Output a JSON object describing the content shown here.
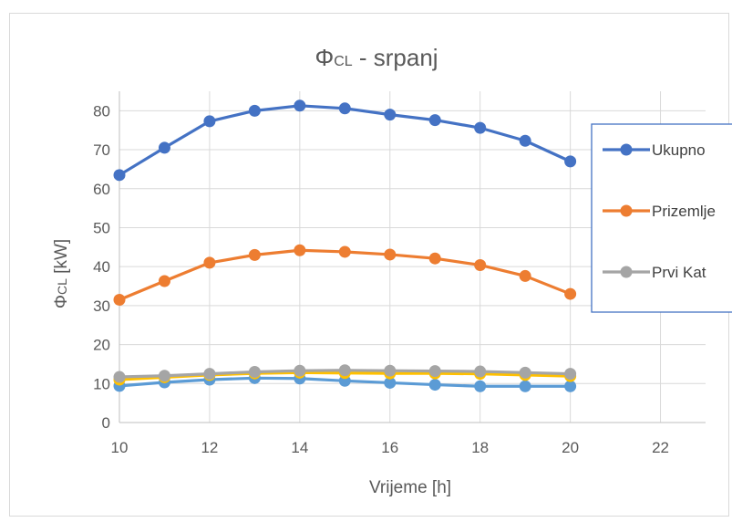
{
  "chart_data": {
    "type": "line",
    "title_symbol": "Φ",
    "title_sub": "CL",
    "title_rest": " - srpanj",
    "ylabel_symbol": "Φ",
    "ylabel_sub": "CL",
    "ylabel_rest": " [kW]",
    "xlabel": "Vrijeme [h]",
    "xlim": [
      10,
      23
    ],
    "ylim": [
      0,
      85
    ],
    "xticks": [
      10,
      12,
      14,
      16,
      18,
      20,
      22
    ],
    "yticks": [
      0,
      10,
      20,
      30,
      40,
      50,
      60,
      70,
      80
    ],
    "grid": true,
    "legend_position": "right",
    "x": [
      10,
      11,
      12,
      13,
      14,
      15,
      16,
      17,
      18,
      19,
      20
    ],
    "series": [
      {
        "name": "Ukupno",
        "color": "#4472C4",
        "in_legend": true,
        "values": [
          63.5,
          70.5,
          77.3,
          80.0,
          81.3,
          80.6,
          79.0,
          77.6,
          75.6,
          72.3,
          67.0
        ]
      },
      {
        "name": "Prizemlje",
        "color": "#ED7D31",
        "in_legend": true,
        "values": [
          31.5,
          36.3,
          41.0,
          43.0,
          44.2,
          43.8,
          43.1,
          42.1,
          40.4,
          37.6,
          33.0
        ]
      },
      {
        "name": "Prvi Kat",
        "color": "#A5A5A5",
        "in_legend": true,
        "values": [
          11.7,
          12.0,
          12.5,
          13.0,
          13.3,
          13.4,
          13.3,
          13.2,
          13.1,
          12.8,
          12.5
        ]
      },
      {
        "color": "#FFC000",
        "in_legend": false,
        "values": [
          11.0,
          11.6,
          12.2,
          12.6,
          12.8,
          12.7,
          12.6,
          12.6,
          12.5,
          12.2,
          11.9
        ]
      },
      {
        "color": "#5B9BD5",
        "in_legend": false,
        "values": [
          9.4,
          10.3,
          11.0,
          11.4,
          11.3,
          10.7,
          10.2,
          9.7,
          9.3,
          9.3,
          9.3
        ]
      }
    ]
  }
}
